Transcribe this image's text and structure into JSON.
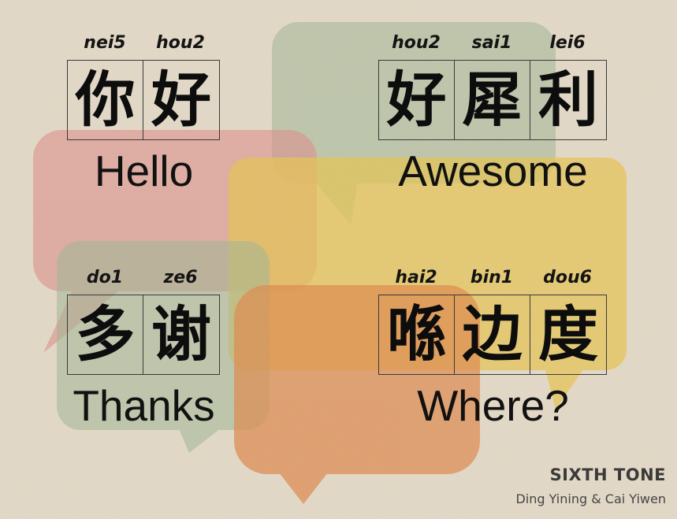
{
  "phrases": [
    {
      "romanization": [
        "nei5",
        "hou2"
      ],
      "characters": [
        "你",
        "好"
      ],
      "english": "Hello"
    },
    {
      "romanization": [
        "hou2",
        "sai1",
        "lei6"
      ],
      "characters": [
        "好",
        "犀",
        "利"
      ],
      "english": "Awesome"
    },
    {
      "romanization": [
        "do1",
        "ze6"
      ],
      "characters": [
        "多",
        "谢"
      ],
      "english": "Thanks"
    },
    {
      "romanization": [
        "hai2",
        "bin1",
        "dou6"
      ],
      "characters": [
        "喺",
        "边",
        "度"
      ],
      "english": "Where?"
    }
  ],
  "branding": {
    "title": "SIXTH TONE",
    "credit": "Ding Yining & Cai Yiwen"
  },
  "colors": {
    "background": "#e6dccb",
    "bubble_green": "#9fb898",
    "bubble_pink": "#df8f8c",
    "bubble_yellow": "#e9c652",
    "bubble_orange": "#e18a4c",
    "text": "#111111"
  }
}
